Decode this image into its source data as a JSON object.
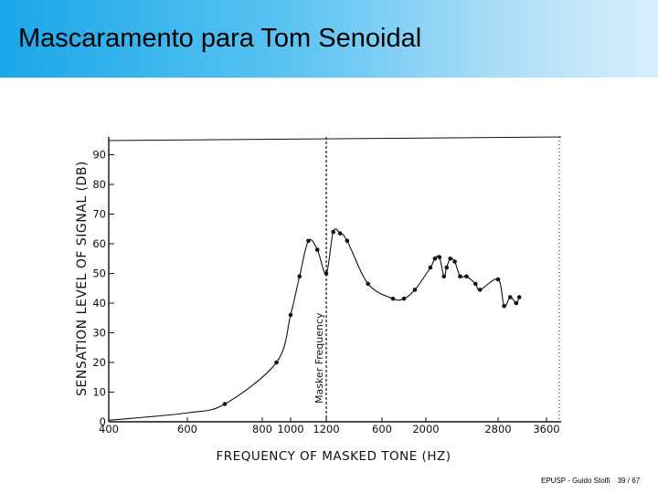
{
  "slide": {
    "title": "Mascaramento para Tom Senoidal",
    "footer_author": "EPUSP - Guido Stolfi",
    "footer_page": "39 / 67"
  },
  "chart_data": {
    "type": "line",
    "xlabel": "FREQUENCY OF MASKED TONE (HZ)",
    "ylabel": "SENSATION LEVEL OF SIGNAL (DB)",
    "annotation": "Masker Frequency",
    "masker_frequency": 1200,
    "x_ticks": [
      "400",
      "600",
      "800",
      "1000",
      "1200",
      "600",
      "2000",
      "2800",
      "3600"
    ],
    "y_ticks": [
      "0",
      "10",
      "20",
      "30",
      "40",
      "50",
      "60",
      "70",
      "80",
      "90"
    ],
    "ylim": [
      0,
      95
    ],
    "color": "#111111",
    "points": [
      {
        "x": 700,
        "y": 6
      },
      {
        "x": 900,
        "y": 20
      },
      {
        "x": 1000,
        "y": 36
      },
      {
        "x": 1050,
        "y": 49
      },
      {
        "x": 1100,
        "y": 61
      },
      {
        "x": 1150,
        "y": 58
      },
      {
        "x": 1200,
        "y": 50
      },
      {
        "x": 1250,
        "y": 64
      },
      {
        "x": 1300,
        "y": 63.5
      },
      {
        "x": 1350,
        "y": 61
      },
      {
        "x": 1500,
        "y": 46.5
      },
      {
        "x": 1700,
        "y": 41.5
      },
      {
        "x": 1800,
        "y": 41.5
      },
      {
        "x": 1900,
        "y": 44.5
      },
      {
        "x": 2050,
        "y": 52
      },
      {
        "x": 2100,
        "y": 55
      },
      {
        "x": 2150,
        "y": 55.5
      },
      {
        "x": 2200,
        "y": 49
      },
      {
        "x": 2230,
        "y": 52
      },
      {
        "x": 2270,
        "y": 55
      },
      {
        "x": 2320,
        "y": 54
      },
      {
        "x": 2380,
        "y": 49
      },
      {
        "x": 2450,
        "y": 49
      },
      {
        "x": 2550,
        "y": 46.5
      },
      {
        "x": 2600,
        "y": 44.5
      },
      {
        "x": 2800,
        "y": 48
      },
      {
        "x": 2900,
        "y": 39
      },
      {
        "x": 3000,
        "y": 42
      },
      {
        "x": 3100,
        "y": 40
      },
      {
        "x": 3150,
        "y": 42
      }
    ]
  }
}
